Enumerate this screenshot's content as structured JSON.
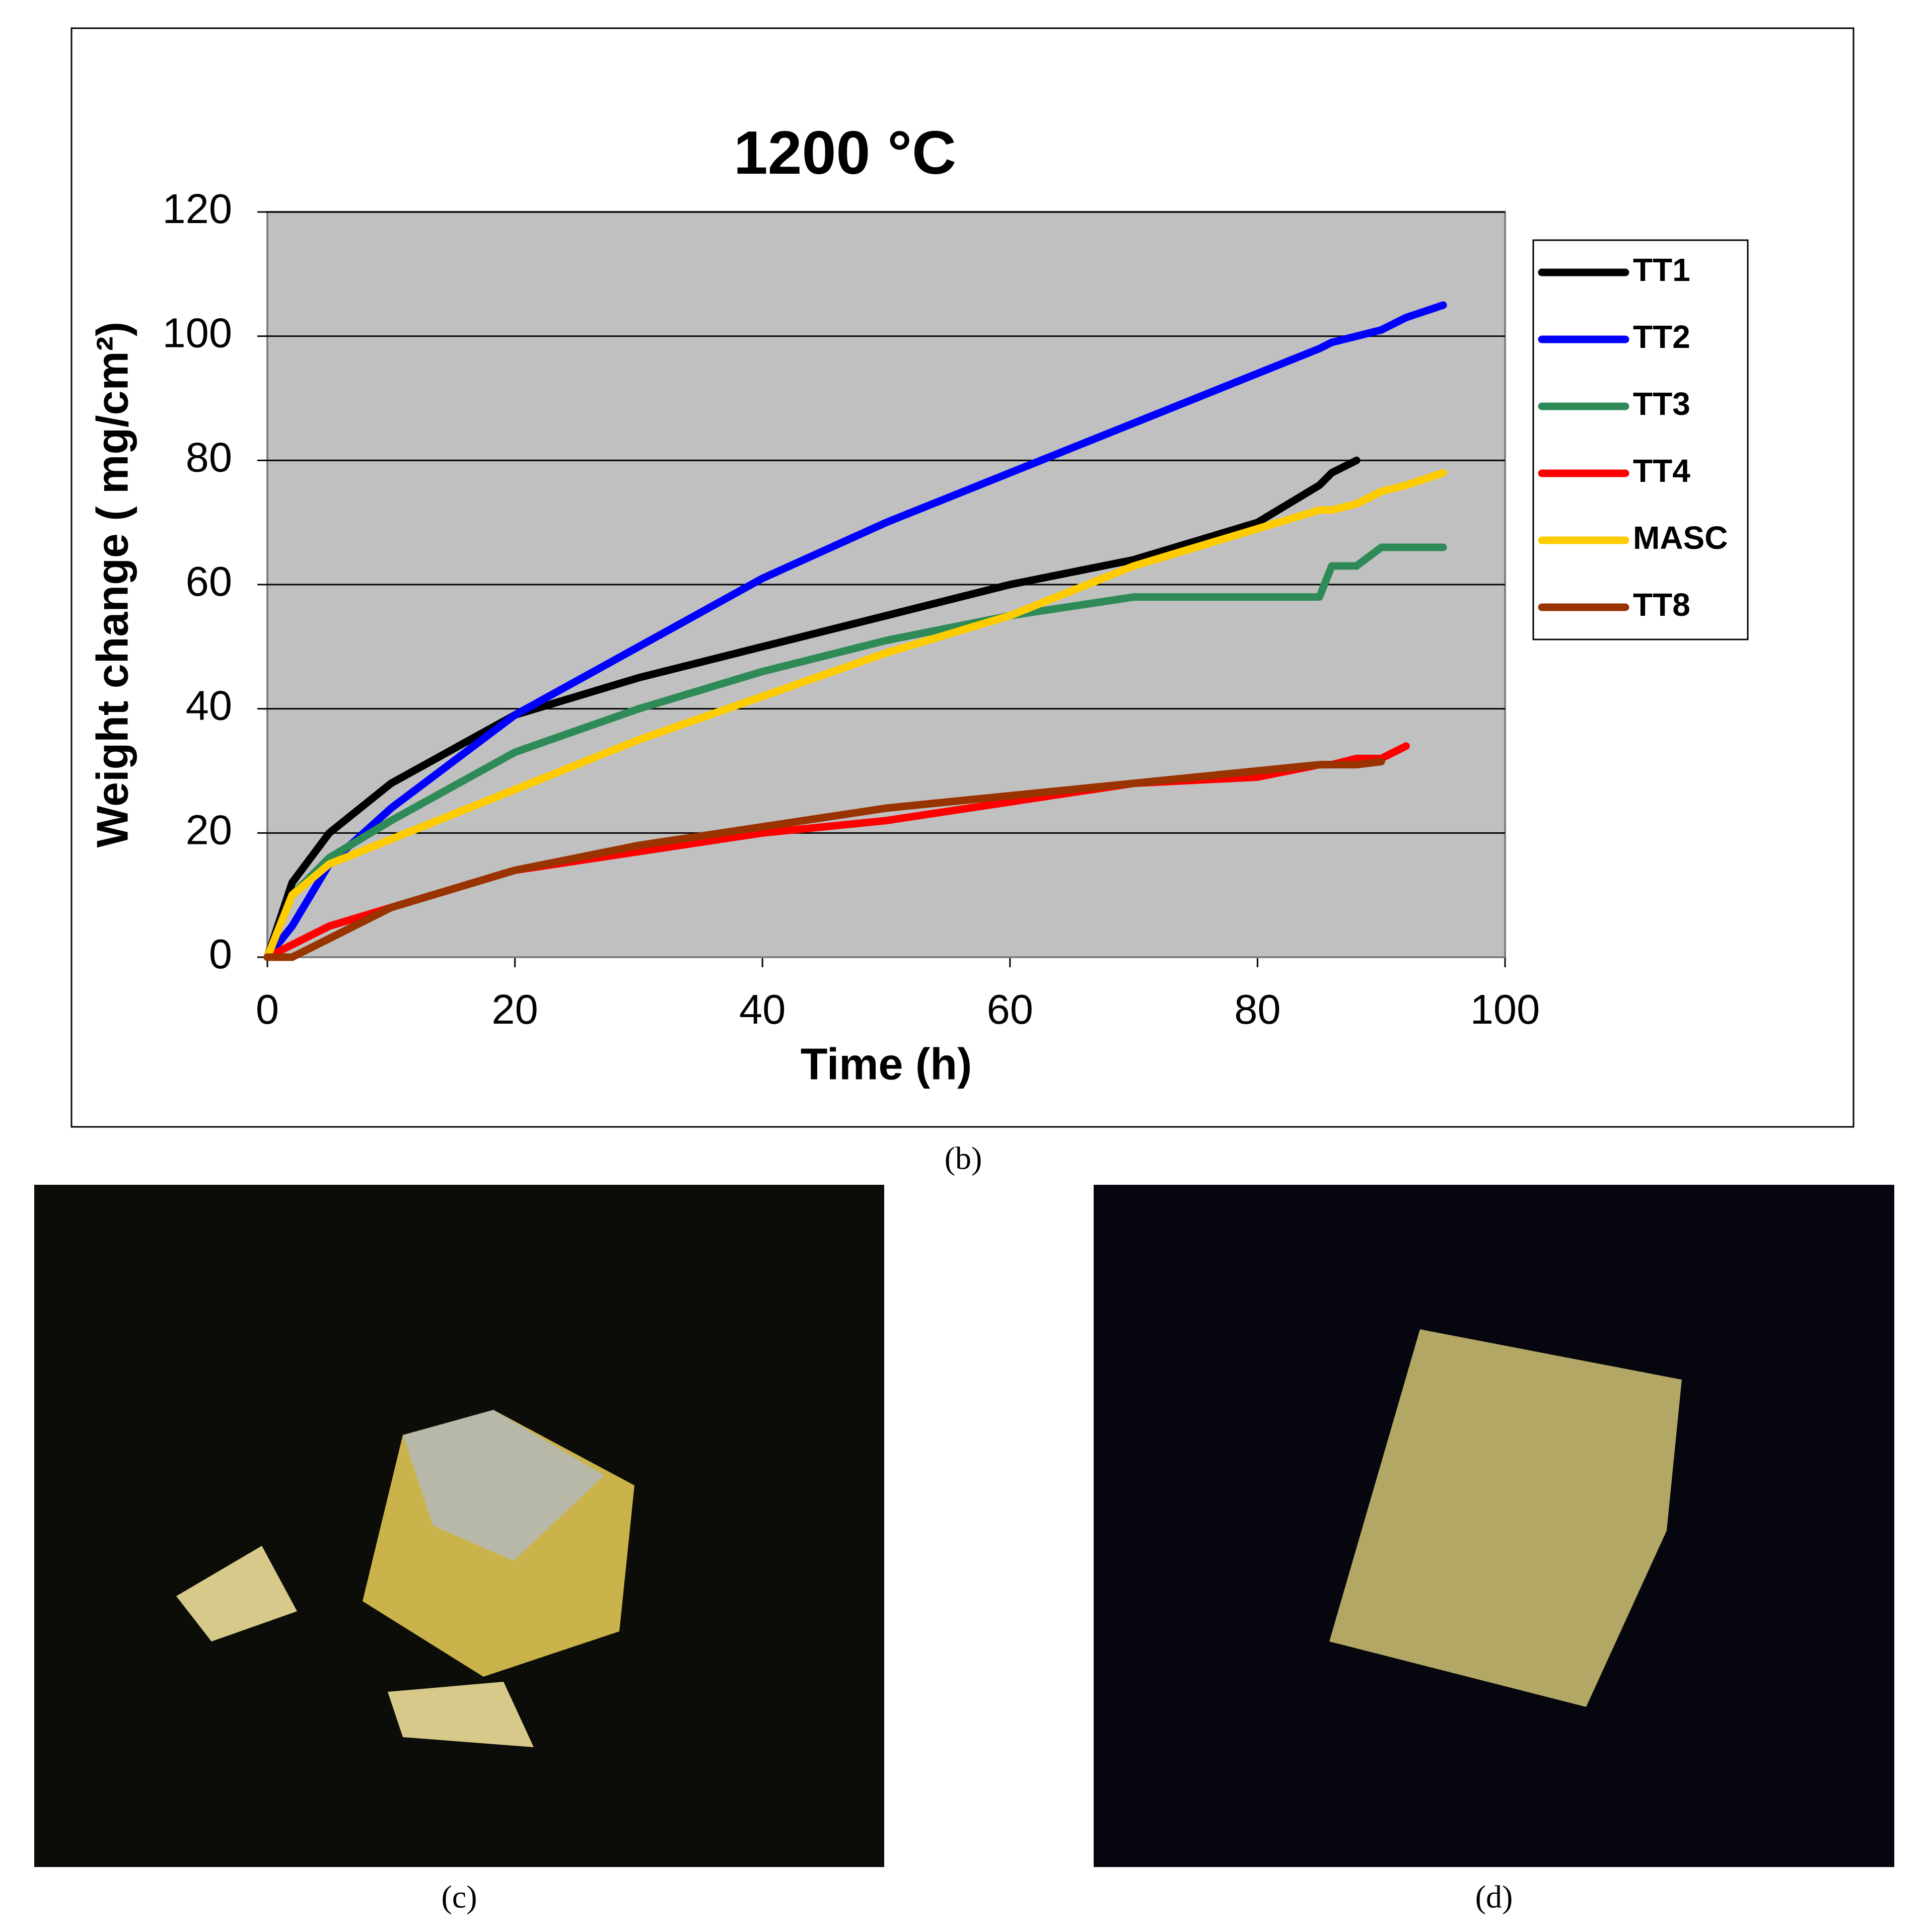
{
  "chart_data": {
    "type": "line",
    "title": "1200 °C",
    "xlabel": "Time (h)",
    "ylabel": "Weight change ( mg/cm²)",
    "x": [
      0,
      2,
      5,
      10,
      20,
      30,
      40,
      50,
      60,
      70,
      80,
      85,
      86,
      88,
      90,
      92,
      95
    ],
    "series": [
      {
        "name": "TT1",
        "color": "#000000",
        "values": [
          0,
          12,
          20,
          28,
          39,
          45,
          50,
          55,
          60,
          64,
          70,
          76,
          78,
          80,
          null,
          null,
          null
        ]
      },
      {
        "name": "TT2",
        "color": "#0000ff",
        "values": [
          0,
          5,
          15,
          24,
          39,
          50,
          61,
          70,
          78,
          86,
          94,
          98,
          99,
          100,
          101,
          103,
          105
        ]
      },
      {
        "name": "TT3",
        "color": "#2e8b57",
        "values": [
          0,
          10,
          16,
          22,
          33,
          40,
          46,
          51,
          55,
          58,
          58,
          58,
          63,
          63,
          66,
          66,
          66
        ]
      },
      {
        "name": "TT4",
        "color": "#ff0000",
        "values": [
          0,
          2,
          5,
          8,
          14,
          17,
          20,
          22,
          25,
          28,
          29,
          31,
          31,
          32,
          32,
          34,
          null
        ]
      },
      {
        "name": "MASC",
        "color": "#ffcc00",
        "values": [
          0,
          10,
          15,
          19,
          27,
          35,
          42,
          49,
          55,
          63,
          69,
          72,
          72,
          73,
          75,
          76,
          78
        ]
      },
      {
        "name": "TT8",
        "color": "#993300",
        "values": [
          0,
          0,
          3,
          8,
          14,
          18,
          21,
          24,
          26,
          28,
          30,
          31,
          31,
          31,
          31.5,
          null,
          null
        ]
      }
    ],
    "xlim": [
      0,
      100
    ],
    "xticks": [
      0,
      20,
      40,
      60,
      80,
      100
    ],
    "ylim": [
      0,
      120
    ],
    "yticks": [
      0,
      20,
      40,
      60,
      80,
      100,
      120
    ],
    "grid": true,
    "legend": "right"
  },
  "captions": [
    "(b)",
    "(c)",
    "(d)"
  ]
}
